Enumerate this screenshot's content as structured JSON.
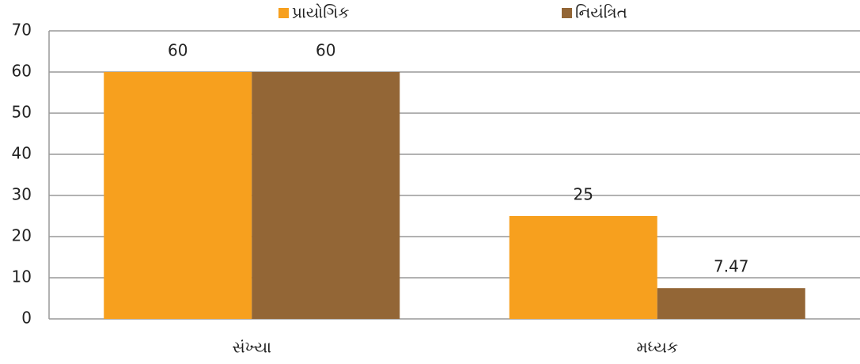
{
  "chart_data": {
    "type": "bar",
    "categories": [
      "સંખ્યા",
      "મધ્યક"
    ],
    "series": [
      {
        "name": "પ્રાયોગિક",
        "color": "#f7a01e",
        "values": [
          60,
          25
        ]
      },
      {
        "name": "નિયંત્રિત",
        "color": "#936636",
        "values": [
          60,
          7.47
        ]
      }
    ],
    "ylim": [
      0,
      70
    ],
    "yticks": [
      0,
      10,
      20,
      30,
      40,
      50,
      60,
      70
    ],
    "grid": true,
    "legend": "top"
  }
}
